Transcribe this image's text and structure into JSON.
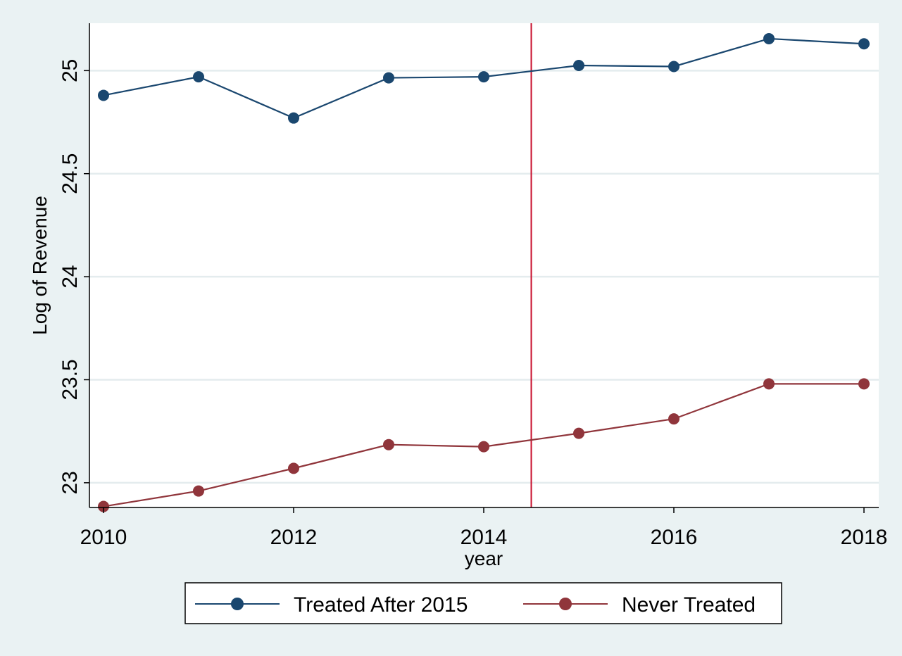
{
  "chart_data": {
    "type": "line",
    "title": "",
    "xlabel": "year",
    "ylabel": "Log of Revenue",
    "x": [
      2010,
      2011,
      2012,
      2013,
      2014,
      2015,
      2016,
      2017,
      2018
    ],
    "xticks": [
      2010,
      2012,
      2014,
      2016,
      2018
    ],
    "xtick_labels": [
      "2010",
      "2012",
      "2014",
      "2016",
      "2018"
    ],
    "yticks": [
      23,
      23.5,
      24,
      24.5,
      25
    ],
    "ytick_labels": [
      "23",
      "23.5",
      "24",
      "24.5",
      "25"
    ],
    "xlim": [
      2010,
      2018
    ],
    "ylim": [
      22.88,
      25.23
    ],
    "grid": true,
    "vertical_reference_line": {
      "x": 2014.5,
      "color": "#c8102e"
    },
    "legend_position": "bottom",
    "series": [
      {
        "name": "Treated After 2015",
        "color": "#1a476f",
        "values": [
          24.88,
          24.97,
          24.77,
          24.965,
          24.97,
          25.025,
          25.02,
          25.155,
          25.13
        ]
      },
      {
        "name": "Never Treated",
        "color": "#90353b",
        "values": [
          22.885,
          22.96,
          23.07,
          23.185,
          23.175,
          23.24,
          23.31,
          23.48,
          23.48
        ]
      }
    ]
  }
}
